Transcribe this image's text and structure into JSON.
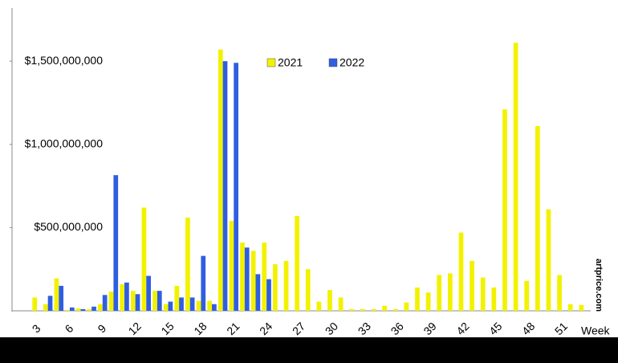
{
  "chart_data": {
    "type": "bar",
    "x_label": "Week",
    "watermark": "artprice.com",
    "categories": [
      null,
      null,
      "3",
      null,
      null,
      "6",
      null,
      null,
      "9",
      null,
      null,
      "12",
      null,
      null,
      "15",
      null,
      null,
      "18",
      null,
      null,
      "21",
      null,
      null,
      "24",
      null,
      null,
      "27",
      null,
      null,
      "30",
      null,
      null,
      "33",
      null,
      null,
      "36",
      null,
      null,
      "39",
      null,
      null,
      "42",
      null,
      null,
      "45",
      null,
      null,
      "48",
      null,
      null,
      "51",
      null,
      null
    ],
    "series": [
      {
        "name": "2021",
        "color": "#f2f200",
        "values": [
          0,
          0,
          80000000,
          40000000,
          195000000,
          5000000,
          15000000,
          10000000,
          40000000,
          115000000,
          160000000,
          120000000,
          620000000,
          120000000,
          40000000,
          150000000,
          560000000,
          60000000,
          60000000,
          1570000000,
          540000000,
          410000000,
          360000000,
          410000000,
          280000000,
          300000000,
          570000000,
          250000000,
          55000000,
          125000000,
          80000000,
          10000000,
          10000000,
          10000000,
          30000000,
          10000000,
          50000000,
          140000000,
          110000000,
          215000000,
          225000000,
          470000000,
          300000000,
          200000000,
          140000000,
          1210000000,
          1610000000,
          180000000,
          1110000000,
          610000000,
          215000000,
          40000000,
          35000000
        ]
      },
      {
        "name": "2022",
        "color": "#2f5fe0",
        "values": [
          null,
          null,
          null,
          90000000,
          150000000,
          20000000,
          10000000,
          25000000,
          95000000,
          815000000,
          170000000,
          100000000,
          210000000,
          120000000,
          55000000,
          80000000,
          80000000,
          330000000,
          40000000,
          1500000000,
          1490000000,
          380000000,
          220000000,
          190000000,
          null,
          null,
          null,
          null,
          null,
          null,
          null,
          null,
          null,
          null,
          null,
          null,
          null,
          null,
          null,
          null,
          null,
          null,
          null,
          null,
          null,
          null,
          null,
          null,
          null,
          null,
          null,
          null,
          null
        ]
      }
    ],
    "ylim": [
      0,
      1800000000
    ],
    "yticks": [
      {
        "value": 500000000,
        "label": "$500,000,000"
      },
      {
        "value": 1000000000,
        "label": "$1,000,000,000"
      },
      {
        "value": 1500000000,
        "label": "$1,500,000,000"
      }
    ],
    "grid": false
  }
}
